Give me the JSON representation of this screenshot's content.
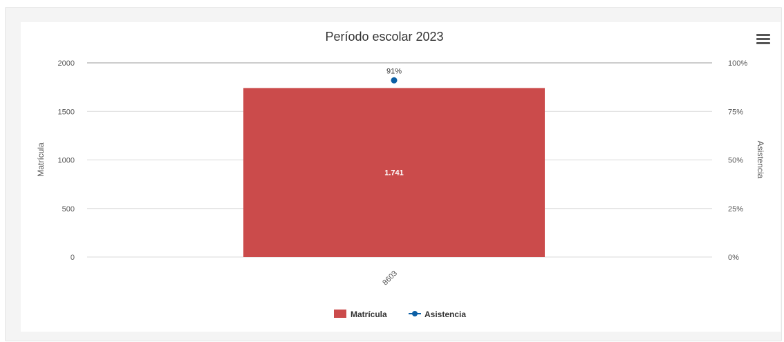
{
  "chart_data": {
    "type": "bar",
    "title": "Período escolar 2023",
    "categories": [
      "8603"
    ],
    "series": [
      {
        "name": "Matrícula",
        "kind": "bar",
        "axis": "left",
        "color": "#cb4b4b",
        "values": [
          1741
        ],
        "data_labels": [
          "1.741"
        ]
      },
      {
        "name": "Asistencia",
        "kind": "point",
        "axis": "right",
        "color": "#0b5fa5",
        "values": [
          91
        ],
        "data_labels": [
          "91%"
        ]
      }
    ],
    "ylabel": "Matrícula",
    "ylim": [
      0,
      2000
    ],
    "yticks": [
      "0",
      "500",
      "1000",
      "1500",
      "2000"
    ],
    "y2label": "Asistencia",
    "y2lim": [
      0,
      100
    ],
    "y2ticks": [
      "0%",
      "25%",
      "50%",
      "75%",
      "100%"
    ],
    "grid": true,
    "legend_position": "bottom"
  },
  "menu_icon": "hamburger-menu-icon"
}
